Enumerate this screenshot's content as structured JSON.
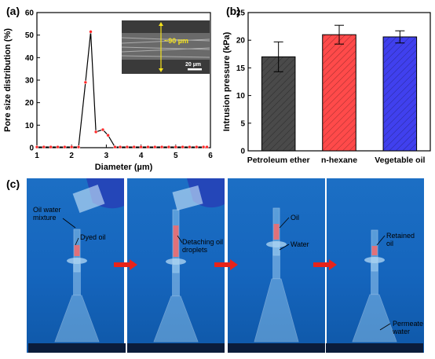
{
  "panel_labels": {
    "a": "(a)",
    "b": "(b)",
    "c": "(c)"
  },
  "chart_data": [
    {
      "type": "line",
      "panel": "(a)",
      "xlabel": "Diameter (µm)",
      "ylabel": "Pore size distribution (%)",
      "xlim": [
        1,
        6
      ],
      "ylim": [
        0,
        60
      ],
      "xticks": [
        "1",
        "2",
        "3",
        "4",
        "5",
        "6"
      ],
      "yticks": [
        "0",
        "10",
        "20",
        "30",
        "40",
        "50",
        "60"
      ],
      "x": [
        1.0,
        1.2,
        1.4,
        1.6,
        1.8,
        2.0,
        2.2,
        2.4,
        2.55,
        2.7,
        2.9,
        3.05,
        3.25,
        3.4,
        3.6,
        3.8,
        4.0,
        4.2,
        4.4,
        4.6,
        4.8,
        5.0,
        5.2,
        5.4,
        5.6,
        5.8,
        5.9
      ],
      "y": [
        0.3,
        0.3,
        0.3,
        0.3,
        0.3,
        0.3,
        0.3,
        29,
        51.5,
        7,
        8,
        5.5,
        0.3,
        0.3,
        0.3,
        0.3,
        0.3,
        0.3,
        0.3,
        0.3,
        0.3,
        0.3,
        0.3,
        0.3,
        0.3,
        0.3,
        0.3
      ],
      "line_color": "#000000",
      "marker_color": "#ff2a2a",
      "inset": {
        "annotation": "~90 µm",
        "scale_bar": "20 µm"
      }
    },
    {
      "type": "bar",
      "panel": "(b)",
      "ylabel": "Intrusion pressure (kPa)",
      "ylim": [
        0,
        25
      ],
      "yticks": [
        "0",
        "5",
        "10",
        "15",
        "20",
        "25"
      ],
      "categories": [
        "Petroleum ether",
        "n-hexane",
        "Vegetable oil"
      ],
      "values": [
        17,
        21,
        20.6
      ],
      "errors": [
        2.7,
        1.7,
        1.1
      ],
      "colors": [
        "#4a4a4a",
        "#ff4a4a",
        "#4040ee"
      ]
    }
  ],
  "photos": {
    "labels": [
      {
        "text": "Oil water\nmixture"
      },
      {
        "text": "Dyed oil"
      },
      {
        "text": "Detaching oil\ndroplets"
      },
      {
        "text": "Oil"
      },
      {
        "text": "Water"
      },
      {
        "text": "Retained\noil"
      },
      {
        "text": "Permeate\nwater"
      }
    ],
    "arrow_color": "#e8231a"
  }
}
